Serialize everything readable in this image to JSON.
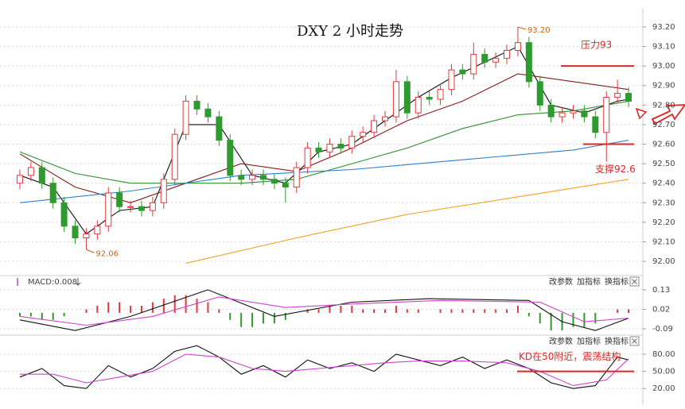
{
  "toolbar": [
    "改参数",
    "加指标",
    "换指标"
  ],
  "chart_data": [
    {
      "type": "candlestick",
      "title": "DXY 2 小时走势",
      "up_color": "#e23a3a",
      "down_color": "#2e9b2e",
      "open": [
        92.4,
        92.44,
        92.48,
        92.4,
        92.3,
        92.18,
        92.12,
        92.14,
        92.18,
        92.35,
        92.28,
        92.28,
        92.26,
        92.3,
        92.42,
        92.65,
        92.82,
        92.78,
        92.74,
        92.62,
        92.44,
        92.42,
        92.44,
        92.42,
        92.4,
        92.38,
        92.48,
        92.58,
        92.56,
        92.6,
        92.58,
        92.64,
        92.66,
        92.72,
        92.74,
        92.92,
        92.76,
        92.84,
        92.83,
        92.88,
        92.98,
        92.96,
        93.06,
        93.02,
        93.04,
        93.08,
        93.12,
        92.92,
        92.8,
        92.74,
        92.76,
        92.77,
        92.74,
        92.66,
        92.84,
        92.86
      ],
      "high": [
        92.47,
        92.51,
        92.51,
        92.43,
        92.33,
        92.21,
        92.17,
        92.21,
        92.38,
        92.38,
        92.31,
        92.31,
        92.33,
        92.45,
        92.68,
        92.85,
        92.85,
        92.81,
        92.77,
        92.65,
        92.47,
        92.47,
        92.47,
        92.45,
        92.43,
        92.51,
        92.61,
        92.61,
        92.63,
        92.63,
        92.67,
        92.69,
        92.75,
        92.77,
        92.98,
        92.95,
        92.87,
        92.87,
        92.91,
        93.01,
        93.01,
        93.12,
        93.09,
        93.07,
        93.11,
        93.2,
        93.15,
        92.95,
        92.83,
        92.79,
        92.8,
        92.8,
        92.77,
        92.87,
        92.93,
        92.89
      ],
      "low": [
        92.37,
        92.41,
        92.37,
        92.27,
        92.15,
        92.09,
        92.06,
        92.11,
        92.15,
        92.25,
        92.25,
        92.23,
        92.23,
        92.27,
        92.39,
        92.62,
        92.75,
        92.71,
        92.59,
        92.41,
        92.39,
        92.39,
        92.39,
        92.37,
        92.3,
        92.35,
        92.45,
        92.53,
        92.53,
        92.55,
        92.55,
        92.61,
        92.63,
        92.69,
        92.71,
        92.73,
        92.73,
        92.8,
        92.8,
        92.85,
        92.93,
        92.93,
        92.99,
        92.99,
        93.01,
        93.05,
        92.89,
        92.77,
        92.71,
        92.71,
        92.73,
        92.71,
        92.63,
        92.51,
        92.81,
        92.79
      ],
      "close": [
        92.44,
        92.48,
        92.4,
        92.3,
        92.18,
        92.12,
        92.14,
        92.18,
        92.35,
        92.28,
        92.28,
        92.26,
        92.3,
        92.42,
        92.65,
        92.82,
        92.78,
        92.74,
        92.62,
        92.44,
        92.42,
        92.44,
        92.42,
        92.4,
        92.38,
        92.48,
        92.58,
        92.56,
        92.6,
        92.58,
        92.64,
        92.66,
        92.72,
        92.74,
        92.92,
        92.76,
        92.84,
        92.83,
        92.88,
        92.98,
        92.96,
        93.06,
        93.02,
        93.04,
        93.08,
        93.12,
        92.92,
        92.8,
        92.74,
        92.76,
        92.77,
        92.74,
        92.66,
        92.84,
        92.86,
        92.82
      ],
      "series": [
        {
          "color": "#111111",
          "x": [
            0,
            3,
            6,
            9,
            12,
            15,
            18,
            21,
            24,
            27,
            30,
            33,
            36,
            39,
            42,
            45,
            48,
            51,
            54,
            55
          ],
          "values": [
            92.44,
            92.38,
            92.14,
            92.26,
            92.28,
            92.7,
            92.7,
            92.44,
            92.4,
            92.56,
            92.6,
            92.72,
            92.84,
            92.94,
            93.02,
            93.1,
            92.8,
            92.76,
            92.82,
            92.83
          ]
        },
        {
          "color": "#8b1a1a",
          "x": [
            0,
            5,
            10,
            15,
            20,
            25,
            30,
            35,
            40,
            45,
            50,
            55
          ],
          "values": [
            92.55,
            92.38,
            92.3,
            92.4,
            92.5,
            92.46,
            92.58,
            92.72,
            92.82,
            92.96,
            92.92,
            92.88
          ]
        },
        {
          "color": "#2f8f2f",
          "x": [
            0,
            5,
            10,
            15,
            20,
            25,
            30,
            35,
            40,
            45,
            50,
            55
          ],
          "values": [
            92.56,
            92.45,
            92.4,
            92.4,
            92.4,
            92.42,
            92.5,
            92.58,
            92.68,
            92.75,
            92.77,
            92.82
          ]
        },
        {
          "color": "#2a7fd0",
          "x": [
            0,
            10,
            20,
            30,
            40,
            50,
            55
          ],
          "values": [
            92.3,
            92.36,
            92.44,
            92.47,
            92.52,
            92.57,
            92.62
          ]
        },
        {
          "color": "#f0a020",
          "x": [
            15,
            25,
            35,
            45,
            55
          ],
          "values": [
            91.99,
            92.12,
            92.24,
            92.33,
            92.42
          ]
        }
      ],
      "annotations": [
        {
          "kind": "point",
          "x": 45,
          "value": 93.2,
          "text": "93.20",
          "color": "#c86414"
        },
        {
          "kind": "point",
          "x": 6,
          "value": 92.06,
          "text": "92.06",
          "color": "#c86414"
        },
        {
          "kind": "level",
          "value": 93,
          "text": "压力93",
          "color": "#e02424"
        },
        {
          "kind": "level",
          "value": 92.6,
          "text": "支撑92.6",
          "color": "#e02424"
        }
      ],
      "ylim": [
        91.935,
        93.265
      ],
      "yticks": [
        {
          "value": 92.0,
          "label": "92.00"
        },
        {
          "value": 92.1,
          "label": "92.10"
        },
        {
          "value": 92.2,
          "label": "92.20"
        },
        {
          "value": 92.3,
          "label": "92.30"
        },
        {
          "value": 92.4,
          "label": "92.40"
        },
        {
          "value": 92.5,
          "label": "92.50"
        },
        {
          "value": 92.6,
          "label": "92.60"
        },
        {
          "value": 92.7,
          "label": "92.70"
        },
        {
          "value": 92.8,
          "label": "92.80"
        },
        {
          "value": 92.9,
          "label": "92.90"
        },
        {
          "value": 93.0,
          "label": "93.00"
        },
        {
          "value": 93.1,
          "label": "93.10"
        },
        {
          "value": 93.2,
          "label": "93.20"
        }
      ],
      "grid": true
    },
    {
      "type": "macd",
      "title": "MACD:0.008",
      "up_color": "#e23a3a",
      "down_color": "#2e9b2e",
      "values": [
        -0.02,
        -0.02,
        -0.04,
        -0.04,
        -0.02,
        0.0,
        0.02,
        0.04,
        0.06,
        0.06,
        0.04,
        0.04,
        0.06,
        0.08,
        0.1,
        0.1,
        0.08,
        0.06,
        0.02,
        -0.04,
        -0.08,
        -0.08,
        -0.06,
        -0.06,
        -0.04,
        0.0,
        0.02,
        0.02,
        0.04,
        0.04,
        0.04,
        0.02,
        0.02,
        0.02,
        0.04,
        0.02,
        0.02,
        0.0,
        0.02,
        0.02,
        0.02,
        0.02,
        0.02,
        0.02,
        0.02,
        0.04,
        -0.02,
        -0.06,
        -0.1,
        -0.1,
        -0.08,
        -0.08,
        -0.06,
        0.0,
        0.02,
        0.02
      ],
      "series": [
        {
          "color": "#111111",
          "x": [
            0,
            5,
            10,
            17,
            23,
            30,
            37,
            46,
            49,
            52,
            55
          ],
          "values": [
            -0.04,
            -0.1,
            -0.02,
            0.13,
            -0.02,
            0.06,
            0.08,
            0.07,
            -0.05,
            -0.1,
            -0.03
          ]
        },
        {
          "color": "#d040d0",
          "x": [
            0,
            6,
            12,
            18,
            24,
            30,
            38,
            47,
            51,
            55
          ],
          "values": [
            -0.02,
            -0.07,
            -0.02,
            0.09,
            0.03,
            0.05,
            0.07,
            0.06,
            -0.05,
            -0.03
          ]
        }
      ],
      "ylim": [
        -0.117,
        0.197
      ],
      "yticks": [
        0.13,
        0.02,
        -0.09
      ],
      "grid": true
    },
    {
      "type": "line",
      "series": [
        {
          "color": "#111111",
          "x": [
            0,
            2,
            4,
            6,
            8,
            10,
            12,
            14,
            16,
            18,
            20,
            22,
            24,
            26,
            28,
            30,
            32,
            34,
            36,
            38,
            40,
            42,
            44,
            46,
            48,
            50,
            52,
            54,
            55
          ],
          "values": [
            40,
            55,
            25,
            20,
            60,
            40,
            55,
            85,
            95,
            75,
            45,
            60,
            40,
            70,
            55,
            65,
            50,
            80,
            70,
            60,
            75,
            55,
            70,
            55,
            30,
            20,
            25,
            75,
            70
          ]
        },
        {
          "color": "#d040d0",
          "x": [
            0,
            3,
            6,
            9,
            12,
            15,
            18,
            21,
            24,
            27,
            30,
            33,
            36,
            40,
            44,
            47,
            50,
            53,
            55
          ],
          "values": [
            45,
            45,
            30,
            40,
            50,
            80,
            75,
            55,
            50,
            55,
            60,
            65,
            68,
            68,
            65,
            50,
            25,
            35,
            72
          ]
        }
      ],
      "annotations": [
        {
          "kind": "level",
          "value": 50,
          "text": "KD在50附近，震荡结构",
          "color": "#e02424"
        }
      ],
      "ylim": [
        5,
        105
      ],
      "yticks": [
        {
          "value": 80,
          "label": "80.00"
        },
        {
          "value": 50,
          "label": "50.00"
        },
        {
          "value": 20,
          "label": "20.00"
        }
      ],
      "grid": true
    }
  ]
}
